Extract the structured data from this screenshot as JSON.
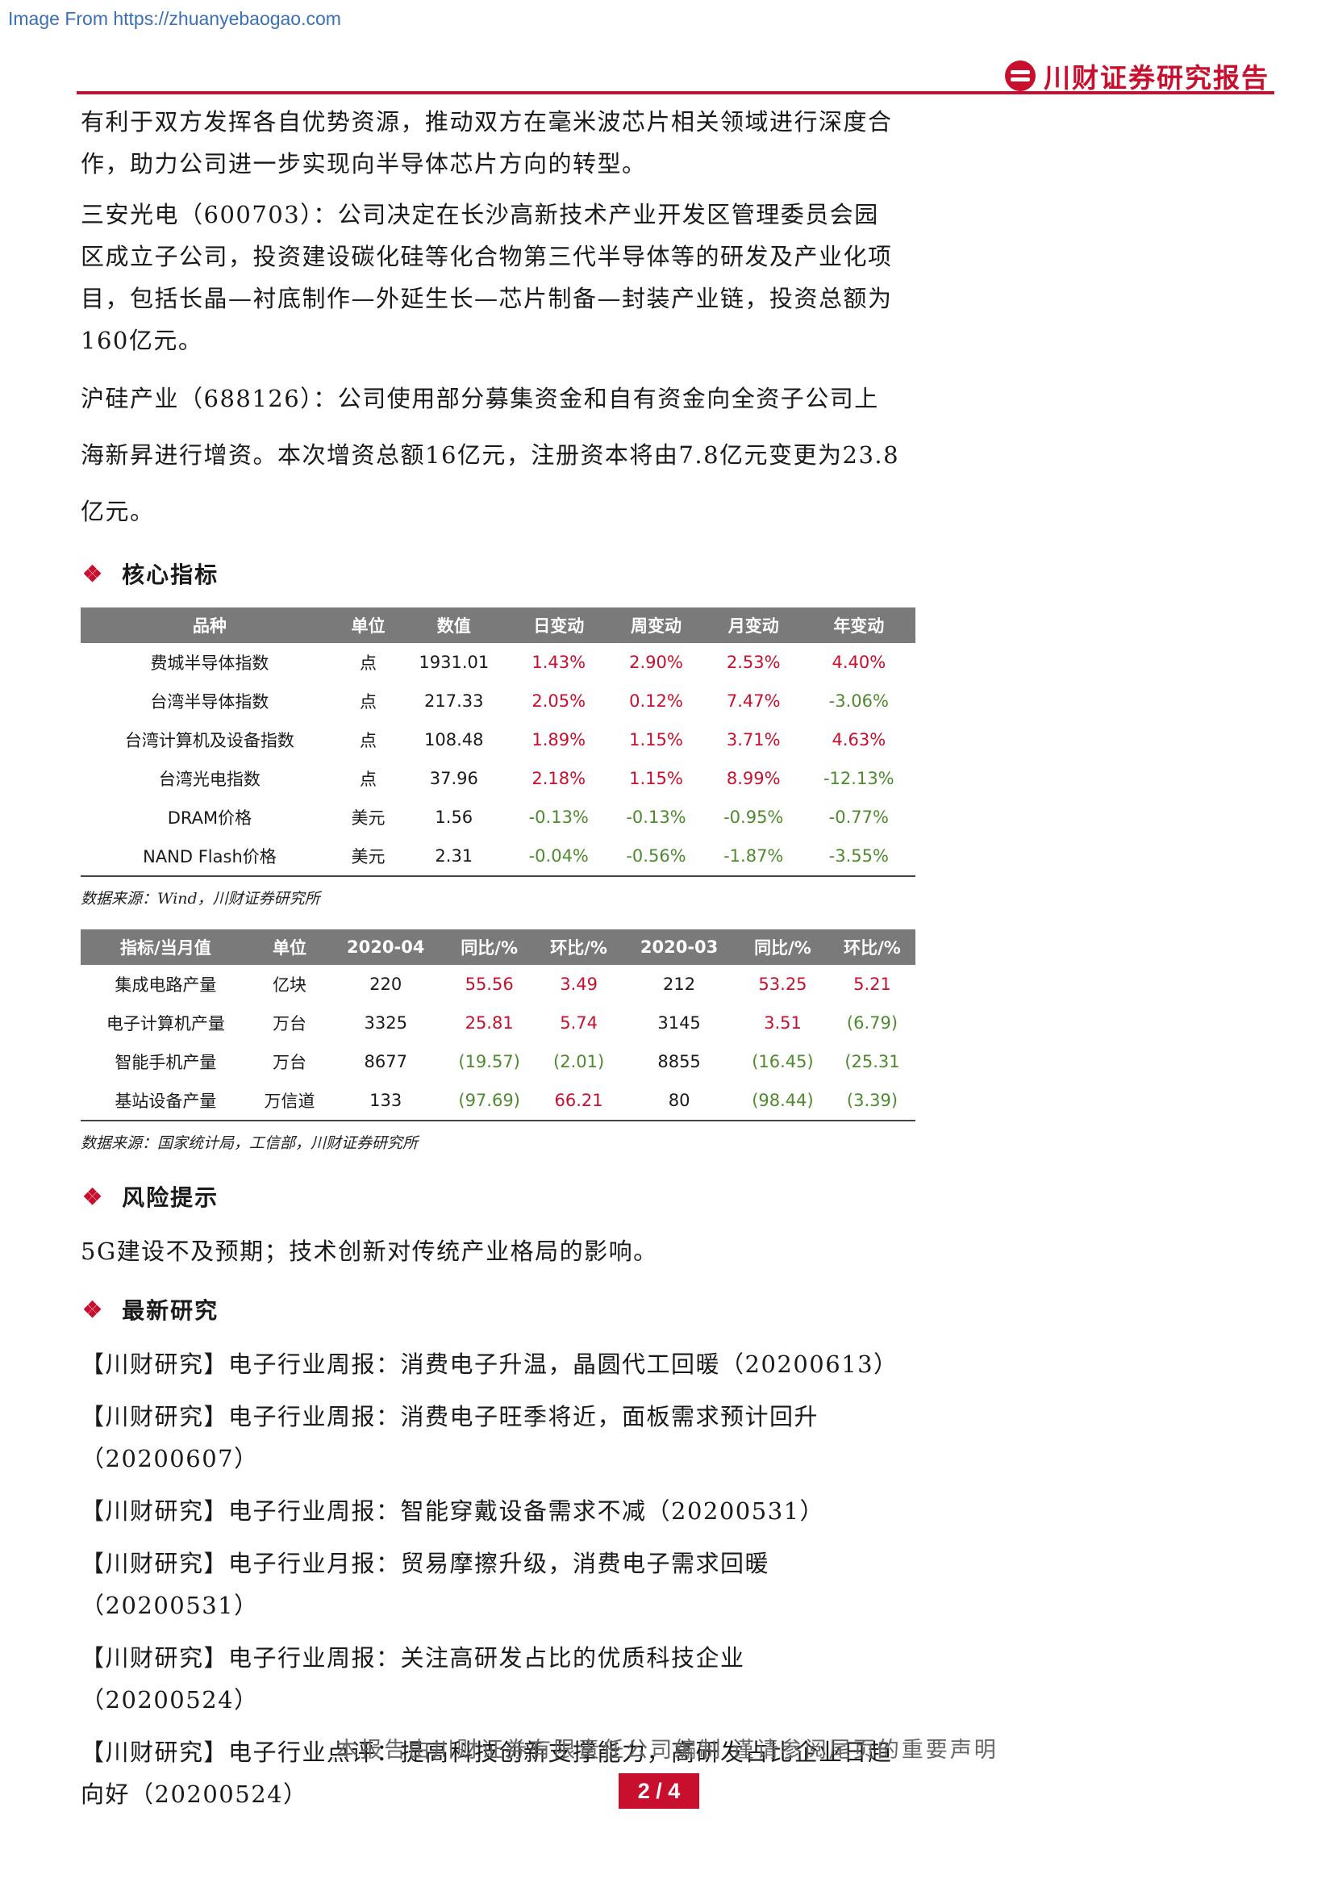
{
  "watermark": "Image From https://zhuanyebaogao.com",
  "brand": "川财证券研究报告",
  "paragraphs": {
    "p1": "有利于双方发挥各自优势资源，推动双方在毫米波芯片相关领域进行深度合作，助力公司进一步实现向半导体芯片方向的转型。",
    "p2": "三安光电（600703）：公司决定在长沙高新技术产业开发区管理委员会园区成立子公司，投资建设碳化硅等化合物第三代半导体等的研发及产业化项目，包括长晶—衬底制作—外延生长—芯片制备—封装产业链，投资总额为160亿元。",
    "p3": "沪硅产业（688126）：公司使用部分募集资金和自有资金向全资子公司上海新昇进行增资。本次增资总额16亿元，注册资本将由7.8亿元变更为23.8亿元。"
  },
  "sections": {
    "core": "核心指标",
    "risk": "风险提示",
    "latest": "最新研究"
  },
  "table1": {
    "headers": [
      "品种",
      "单位",
      "数值",
      "日变动",
      "周变动",
      "月变动",
      "年变动"
    ],
    "rows": [
      [
        "费城半导体指数",
        "点",
        "1931.01",
        "1.43%",
        "2.90%",
        "2.53%",
        "4.40%"
      ],
      [
        "台湾半导体指数",
        "点",
        "217.33",
        "2.05%",
        "0.12%",
        "7.47%",
        "-3.06%"
      ],
      [
        "台湾计算机及设备指数",
        "点",
        "108.48",
        "1.89%",
        "1.15%",
        "3.71%",
        "4.63%"
      ],
      [
        "台湾光电指数",
        "点",
        "37.96",
        "2.18%",
        "1.15%",
        "8.99%",
        "-12.13%"
      ],
      [
        "DRAM价格",
        "美元",
        "1.56",
        "-0.13%",
        "-0.13%",
        "-0.95%",
        "-0.77%"
      ],
      [
        "NAND Flash价格",
        "美元",
        "2.31",
        "-0.04%",
        "-0.56%",
        "-1.87%",
        "-3.55%"
      ]
    ],
    "source": "数据来源：Wind，川财证券研究所"
  },
  "table2": {
    "headers": [
      "指标/当月值",
      "单位",
      "2020-04",
      "同比/%",
      "环比/%",
      "2020-03",
      "同比/%",
      "环比/%"
    ],
    "rows": [
      [
        "集成电路产量",
        "亿块",
        "220",
        "55.56",
        "3.49",
        "212",
        "53.25",
        "5.21"
      ],
      [
        "电子计算机产量",
        "万台",
        "3325",
        "25.81",
        "5.74",
        "3145",
        "3.51",
        "(6.79)"
      ],
      [
        "智能手机产量",
        "万台",
        "8677",
        "(19.57)",
        "(2.01)",
        "8855",
        "(16.45)",
        "(25.31"
      ],
      [
        "基站设备产量",
        "万信道",
        "133",
        "(97.69)",
        "66.21",
        "80",
        "(98.44)",
        "(3.39)"
      ]
    ],
    "source": "数据来源：国家统计局，工信部，川财证券研究所"
  },
  "risk_text": "5G建设不及预期；技术创新对传统产业格局的影响。",
  "research": [
    "【川财研究】电子行业周报：消费电子升温，晶圆代工回暖（20200613）",
    "【川财研究】电子行业周报：消费电子旺季将近，面板需求预计回升（20200607）",
    "【川财研究】电子行业周报：智能穿戴设备需求不减（20200531）",
    "【川财研究】电子行业月报：贸易摩擦升级，消费电子需求回暖（20200531）",
    "【川财研究】电子行业周报：关注高研发占比的优质科技企业（20200524）",
    "【川财研究】电子行业点评：提高科技创新支撑能力，高研发占比企业日趋向好（20200524）"
  ],
  "footer": {
    "note": "本报告由川财证券有限责任公司编制  谨请参阅尾页的重要声明",
    "page": "2 / 4"
  },
  "colors": {
    "accent": "#c8102e",
    "positive": "#c8102e",
    "negative": "#4e8a2e",
    "table_header": "#7a7a7a"
  }
}
